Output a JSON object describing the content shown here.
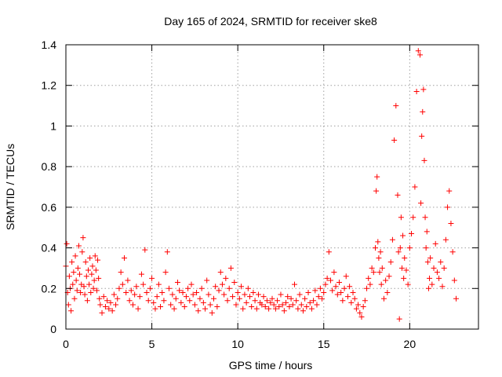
{
  "chart_data": {
    "type": "scatter",
    "title": "Day 165 of 2024, SRMTID for receiver ske8",
    "xlabel": "GPS time / hours",
    "ylabel": "SRMTID / TECUs",
    "xlim": [
      0,
      24
    ],
    "ylim": [
      0,
      1.4
    ],
    "xticks": [
      0,
      5,
      10,
      15,
      20
    ],
    "yticks": [
      0,
      0.2,
      0.4,
      0.6,
      0.8,
      1,
      1.2,
      1.4
    ],
    "xtick_labels": [
      "0",
      "5",
      "10",
      "15",
      "20"
    ],
    "ytick_labels": [
      "0",
      "0.2",
      "0.4",
      "0.6",
      "0.8",
      "1",
      "1.2",
      "1.4"
    ],
    "grid": true,
    "marker": "+",
    "color": "#ff0000",
    "series": [
      {
        "name": "SRMTID",
        "x": [
          0.0,
          0.05,
          0.1,
          0.15,
          0.2,
          0.25,
          0.3,
          0.35,
          0.4,
          0.45,
          0.5,
          0.55,
          0.6,
          0.65,
          0.7,
          0.75,
          0.8,
          0.85,
          0.9,
          0.95,
          1.0,
          1.05,
          1.1,
          1.15,
          1.2,
          1.25,
          1.3,
          1.35,
          1.4,
          1.45,
          1.5,
          1.55,
          1.6,
          1.65,
          1.7,
          1.75,
          1.8,
          1.85,
          1.9,
          1.95,
          2.0,
          2.1,
          2.2,
          2.3,
          2.4,
          2.5,
          2.6,
          2.7,
          2.8,
          2.9,
          3.0,
          3.1,
          3.2,
          3.3,
          3.4,
          3.5,
          3.6,
          3.7,
          3.8,
          3.9,
          4.0,
          4.1,
          4.2,
          4.3,
          4.4,
          4.5,
          4.6,
          4.7,
          4.8,
          4.9,
          5.0,
          5.1,
          5.2,
          5.3,
          5.4,
          5.5,
          5.6,
          5.7,
          5.8,
          5.9,
          6.0,
          6.1,
          6.2,
          6.3,
          6.4,
          6.5,
          6.6,
          6.7,
          6.8,
          6.9,
          7.0,
          7.1,
          7.2,
          7.3,
          7.4,
          7.5,
          7.6,
          7.7,
          7.8,
          7.9,
          8.0,
          8.1,
          8.2,
          8.3,
          8.4,
          8.5,
          8.6,
          8.7,
          8.8,
          8.9,
          9.0,
          9.1,
          9.2,
          9.3,
          9.4,
          9.5,
          9.6,
          9.7,
          9.8,
          9.9,
          10.0,
          10.1,
          10.2,
          10.3,
          10.4,
          10.5,
          10.6,
          10.7,
          10.8,
          10.9,
          11.0,
          11.1,
          11.2,
          11.3,
          11.4,
          11.5,
          11.6,
          11.7,
          11.8,
          11.9,
          12.0,
          12.1,
          12.2,
          12.3,
          12.4,
          12.5,
          12.6,
          12.7,
          12.8,
          12.9,
          13.0,
          13.1,
          13.2,
          13.3,
          13.4,
          13.5,
          13.6,
          13.7,
          13.8,
          13.9,
          14.0,
          14.1,
          14.2,
          14.3,
          14.4,
          14.5,
          14.6,
          14.7,
          14.8,
          14.9,
          15.0,
          15.1,
          15.2,
          15.3,
          15.4,
          15.5,
          15.6,
          15.7,
          15.8,
          15.9,
          16.0,
          16.1,
          16.2,
          16.3,
          16.4,
          16.5,
          16.6,
          16.7,
          16.8,
          16.9,
          17.0,
          17.1,
          17.2,
          17.3,
          17.4,
          17.5,
          17.6,
          17.7,
          17.8,
          17.9,
          18.0,
          18.05,
          18.1,
          18.15,
          18.2,
          18.25,
          18.3,
          18.35,
          18.4,
          18.5,
          18.6,
          18.7,
          18.8,
          18.9,
          19.0,
          19.1,
          19.2,
          19.3,
          19.35,
          19.4,
          19.45,
          19.5,
          19.55,
          19.6,
          19.65,
          19.7,
          19.8,
          19.9,
          20.0,
          20.1,
          20.2,
          20.3,
          20.4,
          20.5,
          20.6,
          20.65,
          20.7,
          20.75,
          20.8,
          20.85,
          20.9,
          20.95,
          21.0,
          21.05,
          21.1,
          21.15,
          21.2,
          21.3,
          21.4,
          21.5,
          21.6,
          21.7,
          21.8,
          21.9,
          22.0,
          22.1,
          22.2,
          22.3,
          22.4,
          22.5,
          22.6,
          22.7
        ],
        "y": [
          0.31,
          0.42,
          0.18,
          0.12,
          0.26,
          0.2,
          0.09,
          0.33,
          0.22,
          0.28,
          0.15,
          0.36,
          0.24,
          0.19,
          0.3,
          0.41,
          0.27,
          0.18,
          0.22,
          0.38,
          0.45,
          0.21,
          0.17,
          0.33,
          0.26,
          0.14,
          0.29,
          0.22,
          0.35,
          0.18,
          0.27,
          0.31,
          0.2,
          0.24,
          0.36,
          0.29,
          0.19,
          0.34,
          0.25,
          0.15,
          0.12,
          0.08,
          0.16,
          0.11,
          0.14,
          0.1,
          0.13,
          0.09,
          0.17,
          0.12,
          0.15,
          0.2,
          0.28,
          0.22,
          0.35,
          0.18,
          0.24,
          0.14,
          0.19,
          0.12,
          0.17,
          0.21,
          0.1,
          0.16,
          0.27,
          0.22,
          0.39,
          0.18,
          0.14,
          0.2,
          0.25,
          0.13,
          0.1,
          0.16,
          0.22,
          0.11,
          0.18,
          0.14,
          0.28,
          0.38,
          0.2,
          0.12,
          0.17,
          0.1,
          0.15,
          0.23,
          0.19,
          0.13,
          0.18,
          0.11,
          0.16,
          0.2,
          0.14,
          0.22,
          0.17,
          0.12,
          0.18,
          0.09,
          0.15,
          0.2,
          0.13,
          0.1,
          0.24,
          0.17,
          0.12,
          0.08,
          0.15,
          0.21,
          0.11,
          0.19,
          0.28,
          0.22,
          0.17,
          0.25,
          0.14,
          0.2,
          0.3,
          0.16,
          0.23,
          0.12,
          0.18,
          0.15,
          0.21,
          0.1,
          0.17,
          0.13,
          0.2,
          0.16,
          0.11,
          0.18,
          0.14,
          0.1,
          0.17,
          0.13,
          0.12,
          0.16,
          0.11,
          0.14,
          0.1,
          0.13,
          0.15,
          0.12,
          0.1,
          0.14,
          0.11,
          0.17,
          0.12,
          0.09,
          0.13,
          0.16,
          0.11,
          0.15,
          0.12,
          0.22,
          0.14,
          0.1,
          0.17,
          0.12,
          0.09,
          0.15,
          0.11,
          0.18,
          0.13,
          0.1,
          0.14,
          0.19,
          0.12,
          0.16,
          0.2,
          0.15,
          0.18,
          0.22,
          0.25,
          0.38,
          0.24,
          0.19,
          0.28,
          0.21,
          0.17,
          0.23,
          0.18,
          0.14,
          0.2,
          0.26,
          0.16,
          0.21,
          0.13,
          0.18,
          0.15,
          0.1,
          0.12,
          0.08,
          0.06,
          0.11,
          0.14,
          0.2,
          0.25,
          0.22,
          0.3,
          0.28,
          0.4,
          0.68,
          0.75,
          0.43,
          0.35,
          0.28,
          0.38,
          0.22,
          0.3,
          0.15,
          0.24,
          0.18,
          0.26,
          0.33,
          0.44,
          0.93,
          1.1,
          0.66,
          0.38,
          0.05,
          0.4,
          0.55,
          0.3,
          0.46,
          0.25,
          0.35,
          0.29,
          0.22,
          0.4,
          0.47,
          0.55,
          0.7,
          1.17,
          1.37,
          1.35,
          0.62,
          0.95,
          1.07,
          1.18,
          0.83,
          0.55,
          0.4,
          0.48,
          0.33,
          0.2,
          0.25,
          0.35,
          0.22,
          0.3,
          0.42,
          0.28,
          0.25,
          0.33,
          0.21,
          0.3,
          0.44,
          0.6,
          0.68,
          0.52,
          0.38,
          0.24,
          0.15
        ]
      }
    ]
  }
}
